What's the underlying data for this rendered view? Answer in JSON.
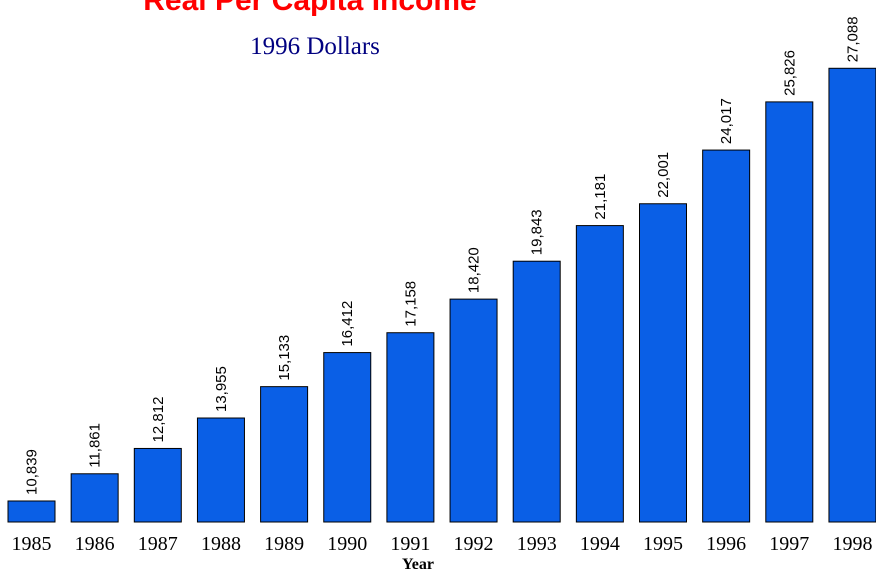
{
  "chart_data": {
    "type": "bar",
    "title": "Real Per Capita Income",
    "subtitle": "1996 Dollars",
    "x_label": "Year",
    "categories": [
      "1985",
      "1986",
      "1987",
      "1988",
      "1989",
      "1990",
      "1991",
      "1992",
      "1993",
      "1994",
      "1995",
      "1996",
      "1997",
      "1998"
    ],
    "values": [
      10839,
      11861,
      12812,
      13955,
      15133,
      16412,
      17158,
      18420,
      19843,
      21181,
      22001,
      24017,
      25826,
      27088
    ],
    "value_labels": [
      "10,839",
      "11,861",
      "12,812",
      "13,955",
      "15,133",
      "16,412",
      "17,158",
      "18,420",
      "19,843",
      "21,181",
      "22,001",
      "24,017",
      "25,826",
      "27,088"
    ],
    "color": "#0a5fe6",
    "ylim": [
      10050,
      28000
    ]
  }
}
